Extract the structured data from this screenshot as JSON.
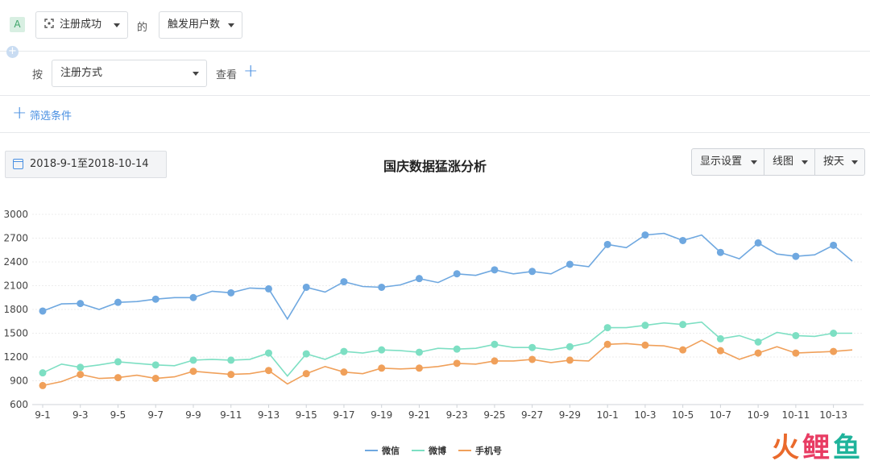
{
  "query": {
    "badge": "A",
    "event_select": "注册成功",
    "of_label": "的",
    "metric_select": "触发用户数",
    "by_label": "按",
    "group_select": "注册方式",
    "view_label": "查看",
    "filter_label": "筛选条件"
  },
  "toolbar": {
    "date_range": "2018-9-1至2018-10-14",
    "display_settings": "显示设置",
    "chart_type": "线图",
    "granularity": "按天"
  },
  "watermark": [
    "火",
    "鲤",
    "鱼"
  ],
  "colors": {
    "wechat": "#6fa8e0",
    "weibo": "#7ddfc3",
    "phone": "#f0a05a",
    "accent": "#4a90e2"
  },
  "chart_data": {
    "type": "line",
    "title": "国庆数据猛涨分析",
    "categories": [
      "9-1",
      "9-2",
      "9-3",
      "9-4",
      "9-5",
      "9-6",
      "9-7",
      "9-8",
      "9-9",
      "9-10",
      "9-11",
      "9-12",
      "9-13",
      "9-14",
      "9-15",
      "9-16",
      "9-17",
      "9-18",
      "9-19",
      "9-20",
      "9-21",
      "9-22",
      "9-23",
      "9-24",
      "9-25",
      "9-26",
      "9-27",
      "9-28",
      "9-29",
      "9-30",
      "10-1",
      "10-2",
      "10-3",
      "10-4",
      "10-5",
      "10-6",
      "10-7",
      "10-8",
      "10-9",
      "10-10",
      "10-11",
      "10-12",
      "10-13",
      "10-14"
    ],
    "x_tick_labels": [
      "9-1",
      "9-3",
      "9-5",
      "9-7",
      "9-9",
      "9-11",
      "9-13",
      "9-15",
      "9-17",
      "9-19",
      "9-21",
      "9-23",
      "9-25",
      "9-27",
      "9-29",
      "10-1",
      "10-3",
      "10-5",
      "10-7",
      "10-9",
      "10-11",
      "10-13"
    ],
    "y_ticks": [
      600,
      900,
      1200,
      1500,
      1800,
      2100,
      2400,
      2700,
      3000
    ],
    "ylim": [
      600,
      3000
    ],
    "grid": true,
    "legend_position": "bottom",
    "series": [
      {
        "name": "微信",
        "values": [
          1780,
          1870,
          1875,
          1800,
          1890,
          1900,
          1930,
          1950,
          1950,
          2030,
          2010,
          2070,
          2060,
          1680,
          2080,
          2020,
          2150,
          2090,
          2080,
          2110,
          2190,
          2140,
          2250,
          2230,
          2300,
          2250,
          2280,
          2250,
          2370,
          2340,
          2620,
          2580,
          2740,
          2760,
          2670,
          2740,
          2520,
          2440,
          2640,
          2500,
          2470,
          2490,
          2610,
          2410
        ]
      },
      {
        "name": "微博",
        "values": [
          1000,
          1110,
          1070,
          1100,
          1140,
          1120,
          1100,
          1090,
          1160,
          1170,
          1160,
          1170,
          1250,
          960,
          1240,
          1170,
          1270,
          1250,
          1290,
          1280,
          1260,
          1310,
          1300,
          1310,
          1360,
          1320,
          1320,
          1290,
          1330,
          1380,
          1570,
          1570,
          1600,
          1630,
          1610,
          1640,
          1430,
          1470,
          1390,
          1510,
          1470,
          1460,
          1500,
          1500
        ]
      },
      {
        "name": "手机号",
        "values": [
          840,
          890,
          980,
          930,
          940,
          970,
          930,
          950,
          1020,
          1000,
          980,
          990,
          1030,
          860,
          990,
          1080,
          1010,
          990,
          1060,
          1050,
          1060,
          1080,
          1120,
          1110,
          1150,
          1150,
          1170,
          1130,
          1160,
          1150,
          1360,
          1370,
          1350,
          1340,
          1290,
          1410,
          1280,
          1170,
          1250,
          1330,
          1250,
          1260,
          1270,
          1290
        ]
      }
    ]
  }
}
